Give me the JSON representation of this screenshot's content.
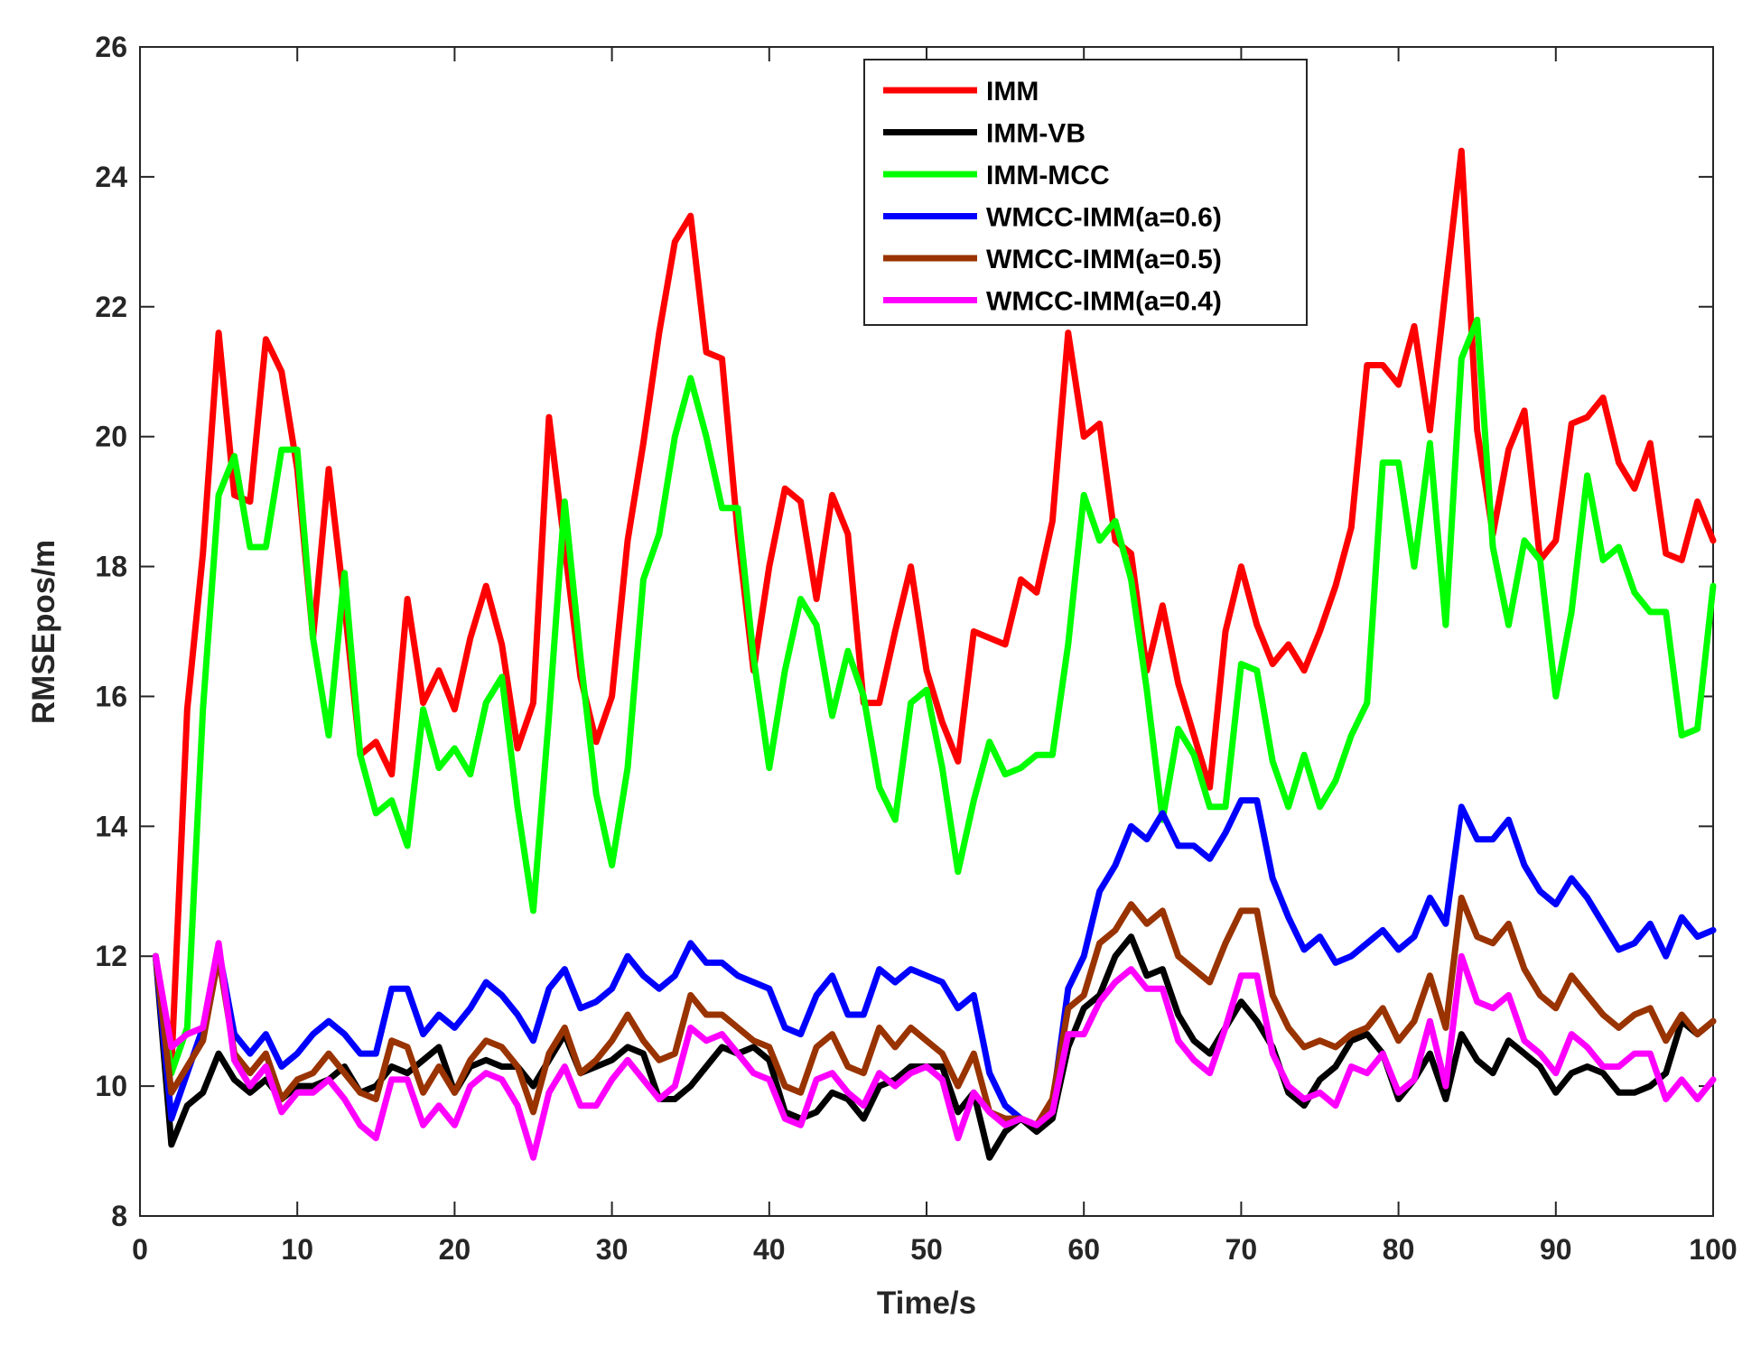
{
  "chart_data": {
    "type": "line",
    "title": "",
    "xlabel": "Time/s",
    "ylabel": "RMSEpos/m",
    "xlim": [
      0,
      100
    ],
    "ylim": [
      8,
      26
    ],
    "xticks": [
      0,
      10,
      20,
      30,
      40,
      50,
      60,
      70,
      80,
      90,
      100
    ],
    "yticks": [
      8,
      10,
      12,
      14,
      16,
      18,
      20,
      22,
      24,
      26
    ],
    "grid": false,
    "legend_position": "top-right",
    "x_start": 1,
    "x_step": 1,
    "series": [
      {
        "name": "IMM",
        "color": "#ff0000",
        "values": [
          12.0,
          10.3,
          15.8,
          18.2,
          21.6,
          19.1,
          19.0,
          21.5,
          21.0,
          19.5,
          16.9,
          19.5,
          17.4,
          15.1,
          15.3,
          14.8,
          17.5,
          15.9,
          16.4,
          15.8,
          16.9,
          17.7,
          16.8,
          15.2,
          15.9,
          20.3,
          18.3,
          16.3,
          15.3,
          16.0,
          18.4,
          19.9,
          21.6,
          23.0,
          23.4,
          21.3,
          21.2,
          18.5,
          16.4,
          18.0,
          19.2,
          19.0,
          17.5,
          19.1,
          18.5,
          15.9,
          15.9,
          17.0,
          18.0,
          16.4,
          15.6,
          15.0,
          17.0,
          16.9,
          16.8,
          17.8,
          17.6,
          18.7,
          21.6,
          20.0,
          20.2,
          18.4,
          18.2,
          16.4,
          17.4,
          16.2,
          15.4,
          14.6,
          17.0,
          18.0,
          17.1,
          16.5,
          16.8,
          16.4,
          17.0,
          17.7,
          18.6,
          21.1,
          21.1,
          20.8,
          21.7,
          20.1,
          22.3,
          24.4,
          20.1,
          18.5,
          19.8,
          20.4,
          18.1,
          18.4,
          20.2,
          20.3,
          20.6,
          19.6,
          19.2,
          19.9,
          18.2,
          18.1,
          19.0,
          18.4
        ]
      },
      {
        "name": "IMM-VB",
        "color": "#000000",
        "values": [
          12.0,
          9.1,
          9.7,
          9.9,
          10.5,
          10.1,
          9.9,
          10.1,
          9.8,
          10.0,
          10.0,
          10.1,
          10.3,
          9.9,
          10.0,
          10.3,
          10.2,
          10.4,
          10.6,
          9.9,
          10.3,
          10.4,
          10.3,
          10.3,
          10.0,
          10.4,
          10.8,
          10.2,
          10.3,
          10.4,
          10.6,
          10.5,
          9.8,
          9.8,
          10.0,
          10.3,
          10.6,
          10.5,
          10.6,
          10.4,
          9.6,
          9.5,
          9.6,
          9.9,
          9.8,
          9.5,
          10.0,
          10.1,
          10.3,
          10.3,
          10.3,
          9.6,
          9.9,
          8.9,
          9.3,
          9.5,
          9.3,
          9.5,
          10.6,
          11.2,
          11.4,
          12.0,
          12.3,
          11.7,
          11.8,
          11.1,
          10.7,
          10.5,
          10.9,
          11.3,
          11.0,
          10.6,
          9.9,
          9.7,
          10.1,
          10.3,
          10.7,
          10.8,
          10.5,
          9.8,
          10.1,
          10.5,
          9.8,
          10.8,
          10.4,
          10.2,
          10.7,
          10.5,
          10.3,
          9.9,
          10.2,
          10.3,
          10.2,
          9.9,
          9.9,
          10.0,
          10.2,
          11.0,
          10.8,
          11.0
        ]
      },
      {
        "name": "IMM-MCC",
        "color": "#00ff00",
        "values": [
          12.0,
          10.2,
          10.9,
          15.8,
          19.1,
          19.7,
          18.3,
          18.3,
          19.8,
          19.8,
          16.9,
          15.4,
          17.9,
          15.1,
          14.2,
          14.4,
          13.7,
          15.8,
          14.9,
          15.2,
          14.8,
          15.9,
          16.3,
          14.3,
          12.7,
          15.7,
          19.0,
          16.6,
          14.5,
          13.4,
          14.9,
          17.8,
          18.5,
          20.0,
          20.9,
          20.0,
          18.9,
          18.9,
          16.6,
          14.9,
          16.4,
          17.5,
          17.1,
          15.7,
          16.7,
          16.0,
          14.6,
          14.1,
          15.9,
          16.1,
          14.9,
          13.3,
          14.4,
          15.3,
          14.8,
          14.9,
          15.1,
          15.1,
          16.8,
          19.1,
          18.4,
          18.7,
          17.8,
          16.1,
          14.1,
          15.5,
          15.1,
          14.3,
          14.3,
          16.5,
          16.4,
          15.0,
          14.3,
          15.1,
          14.3,
          14.7,
          15.4,
          15.9,
          19.6,
          19.6,
          18.0,
          19.9,
          17.1,
          21.2,
          21.8,
          18.3,
          17.1,
          18.4,
          18.1,
          16.0,
          17.3,
          19.4,
          18.1,
          18.3,
          17.6,
          17.3,
          17.3,
          15.4,
          15.5,
          17.7
        ]
      },
      {
        "name": "WMCC-IMM(a=0.6)",
        "color": "#0000ff",
        "values": [
          12.0,
          9.5,
          10.2,
          10.9,
          12.1,
          10.8,
          10.5,
          10.8,
          10.3,
          10.5,
          10.8,
          11.0,
          10.8,
          10.5,
          10.5,
          11.5,
          11.5,
          10.8,
          11.1,
          10.9,
          11.2,
          11.6,
          11.4,
          11.1,
          10.7,
          11.5,
          11.8,
          11.2,
          11.3,
          11.5,
          12.0,
          11.7,
          11.5,
          11.7,
          12.2,
          11.9,
          11.9,
          11.7,
          11.6,
          11.5,
          10.9,
          10.8,
          11.4,
          11.7,
          11.1,
          11.1,
          11.8,
          11.6,
          11.8,
          11.7,
          11.6,
          11.2,
          11.4,
          10.2,
          9.7,
          9.5,
          9.4,
          9.7,
          11.5,
          12.0,
          13.0,
          13.4,
          14.0,
          13.8,
          14.2,
          13.7,
          13.7,
          13.5,
          13.9,
          14.4,
          14.4,
          13.2,
          12.6,
          12.1,
          12.3,
          11.9,
          12.0,
          12.2,
          12.4,
          12.1,
          12.3,
          12.9,
          12.5,
          14.3,
          13.8,
          13.8,
          14.1,
          13.4,
          13.0,
          12.8,
          13.2,
          12.9,
          12.5,
          12.1,
          12.2,
          12.5,
          12.0,
          12.6,
          12.3,
          12.4
        ]
      },
      {
        "name": "WMCC-IMM(a=0.5)",
        "color": "#993300",
        "values": [
          12.0,
          9.9,
          10.3,
          10.7,
          12.0,
          10.5,
          10.2,
          10.5,
          9.8,
          10.1,
          10.2,
          10.5,
          10.2,
          9.9,
          9.8,
          10.7,
          10.6,
          9.9,
          10.3,
          9.9,
          10.4,
          10.7,
          10.6,
          10.3,
          9.6,
          10.5,
          10.9,
          10.2,
          10.4,
          10.7,
          11.1,
          10.7,
          10.4,
          10.5,
          11.4,
          11.1,
          11.1,
          10.9,
          10.7,
          10.6,
          10.0,
          9.9,
          10.6,
          10.8,
          10.3,
          10.2,
          10.9,
          10.6,
          10.9,
          10.7,
          10.5,
          10.0,
          10.5,
          9.6,
          9.5,
          9.5,
          9.4,
          9.8,
          11.2,
          11.4,
          12.2,
          12.4,
          12.8,
          12.5,
          12.7,
          12.0,
          11.8,
          11.6,
          12.2,
          12.7,
          12.7,
          11.4,
          10.9,
          10.6,
          10.7,
          10.6,
          10.8,
          10.9,
          11.2,
          10.7,
          11.0,
          11.7,
          10.9,
          12.9,
          12.3,
          12.2,
          12.5,
          11.8,
          11.4,
          11.2,
          11.7,
          11.4,
          11.1,
          10.9,
          11.1,
          11.2,
          10.7,
          11.1,
          10.8,
          11.0
        ]
      },
      {
        "name": "WMCC-IMM(a=0.4)",
        "color": "#ff00ff",
        "values": [
          12.0,
          10.6,
          10.8,
          10.9,
          12.2,
          10.4,
          10.0,
          10.3,
          9.6,
          9.9,
          9.9,
          10.1,
          9.8,
          9.4,
          9.2,
          10.1,
          10.1,
          9.4,
          9.7,
          9.4,
          10.0,
          10.2,
          10.1,
          9.7,
          8.9,
          9.9,
          10.3,
          9.7,
          9.7,
          10.1,
          10.4,
          10.1,
          9.8,
          10.0,
          10.9,
          10.7,
          10.8,
          10.5,
          10.2,
          10.1,
          9.5,
          9.4,
          10.1,
          10.2,
          9.9,
          9.7,
          10.2,
          10.0,
          10.2,
          10.3,
          10.1,
          9.2,
          9.9,
          9.6,
          9.4,
          9.5,
          9.4,
          9.6,
          10.8,
          10.8,
          11.3,
          11.6,
          11.8,
          11.5,
          11.5,
          10.7,
          10.4,
          10.2,
          10.9,
          11.7,
          11.7,
          10.5,
          10.0,
          9.8,
          9.9,
          9.7,
          10.3,
          10.2,
          10.5,
          9.9,
          10.1,
          11.0,
          10.0,
          12.0,
          11.3,
          11.2,
          11.4,
          10.7,
          10.5,
          10.2,
          10.8,
          10.6,
          10.3,
          10.3,
          10.5,
          10.5,
          9.8,
          10.1,
          9.8,
          10.1
        ]
      }
    ]
  }
}
